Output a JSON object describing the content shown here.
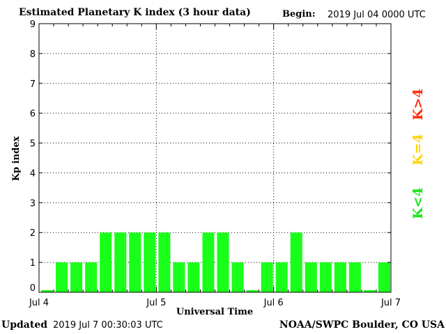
{
  "header": {
    "title": "Estimated Planetary K index (3 hour data)",
    "begin_label": "Begin:",
    "begin_value": "2019 Jul 04 0000 UTC"
  },
  "footer": {
    "updated_label": "Updated",
    "updated_value": "2019 Jul  7 00:30:03 UTC",
    "source": "NOAA/SWPC Boulder, CO USA"
  },
  "legend": [
    {
      "label": "K>4",
      "color": "#ff2d10"
    },
    {
      "label": "K=4",
      "color": "#ffd400"
    },
    {
      "label": "K<4",
      "color": "#19e619"
    }
  ],
  "chart_data": {
    "type": "bar",
    "title": "Estimated Planetary K index (3 hour data)",
    "xlabel": "Universal Time",
    "ylabel": "Kp index",
    "ylim": [
      0,
      9
    ],
    "yticks": [
      0,
      1,
      2,
      3,
      4,
      5,
      6,
      7,
      8,
      9
    ],
    "xtick_labels": [
      "Jul 4",
      "Jul 5",
      "Jul 6",
      "Jul 7"
    ],
    "grid": true,
    "bar_color": "#19ff19",
    "values": [
      0,
      1,
      1,
      1,
      2,
      2,
      2,
      2,
      2,
      1,
      1,
      2,
      2,
      1,
      0,
      1,
      1,
      2,
      1,
      1,
      1,
      1,
      0,
      1
    ]
  }
}
